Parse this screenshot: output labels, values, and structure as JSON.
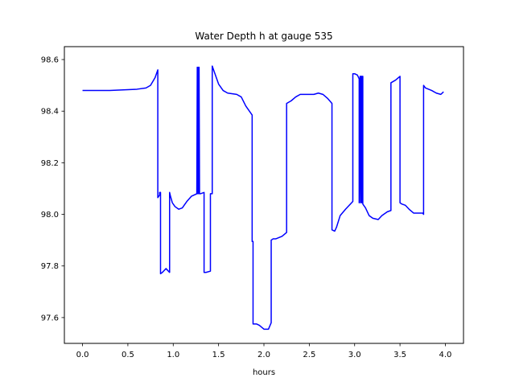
{
  "chart_data": {
    "type": "line",
    "title": "Water Depth h at gauge 535",
    "xlabel": "hours",
    "ylabel": "",
    "xlim": [
      -0.2,
      4.2
    ],
    "ylim": [
      97.5,
      98.65
    ],
    "xticks": [
      0.0,
      0.5,
      1.0,
      1.5,
      2.0,
      2.5,
      3.0,
      3.5,
      4.0
    ],
    "xtick_labels": [
      "0.0",
      "0.5",
      "1.0",
      "1.5",
      "2.0",
      "2.5",
      "3.0",
      "3.5",
      "4.0"
    ],
    "yticks": [
      97.6,
      97.8,
      98.0,
      98.2,
      98.4,
      98.6
    ],
    "ytick_labels": [
      "97.6",
      "97.8",
      "98.0",
      "98.2",
      "98.4",
      "98.6"
    ],
    "grid": false,
    "series": [
      {
        "color": "#0000ff",
        "x": [
          0.0,
          0.3,
          0.6,
          0.7,
          0.75,
          0.8,
          0.83,
          0.83,
          0.85,
          0.85,
          0.86,
          0.86,
          0.88,
          0.92,
          0.96,
          0.96,
          0.97,
          0.99,
          1.02,
          1.06,
          1.1,
          1.15,
          1.2,
          1.26,
          1.265,
          1.27,
          1.275,
          1.28,
          1.285,
          1.29,
          1.3,
          1.34,
          1.34,
          1.36,
          1.41,
          1.41,
          1.43,
          1.43,
          1.46,
          1.5,
          1.55,
          1.6,
          1.7,
          1.75,
          1.8,
          1.87,
          1.87,
          1.88,
          1.88,
          1.92,
          1.95,
          2.0,
          2.05,
          2.08,
          2.08,
          2.1,
          2.13,
          2.2,
          2.25,
          2.25,
          2.3,
          2.35,
          2.4,
          2.45,
          2.55,
          2.6,
          2.65,
          2.7,
          2.75,
          2.75,
          2.78,
          2.8,
          2.84,
          2.9,
          2.98,
          2.98,
          3.0,
          3.03,
          3.05,
          3.05,
          3.06,
          3.065,
          3.07,
          3.075,
          3.08,
          3.085,
          3.09,
          3.09,
          3.12,
          3.16,
          3.2,
          3.26,
          3.3,
          3.36,
          3.4,
          3.4,
          3.45,
          3.5,
          3.5,
          3.52,
          3.56,
          3.6,
          3.65,
          3.7,
          3.75,
          3.76,
          3.76,
          3.78,
          3.85,
          3.9,
          3.95,
          3.98
        ],
        "y": [
          98.48,
          98.48,
          98.485,
          98.49,
          98.5,
          98.53,
          98.56,
          98.065,
          98.075,
          98.085,
          98.085,
          97.77,
          97.775,
          97.79,
          97.775,
          98.085,
          98.07,
          98.045,
          98.03,
          98.02,
          98.025,
          98.05,
          98.07,
          98.08,
          98.57,
          98.08,
          98.57,
          98.08,
          98.57,
          98.08,
          98.08,
          98.085,
          97.775,
          97.775,
          97.78,
          98.08,
          98.08,
          98.575,
          98.545,
          98.505,
          98.48,
          98.47,
          98.465,
          98.455,
          98.42,
          98.385,
          97.895,
          97.895,
          97.575,
          97.575,
          97.57,
          97.555,
          97.555,
          97.58,
          97.9,
          97.905,
          97.905,
          97.915,
          97.93,
          98.43,
          98.44,
          98.455,
          98.465,
          98.465,
          98.465,
          98.47,
          98.465,
          98.45,
          98.43,
          97.94,
          97.935,
          97.95,
          97.995,
          98.02,
          98.05,
          98.545,
          98.545,
          98.54,
          98.525,
          98.045,
          98.535,
          98.045,
          98.535,
          98.045,
          98.535,
          98.045,
          98.535,
          98.04,
          98.025,
          97.995,
          97.985,
          97.98,
          97.995,
          98.01,
          98.015,
          98.51,
          98.52,
          98.535,
          98.045,
          98.04,
          98.035,
          98.02,
          98.005,
          98.005,
          98.005,
          98.0,
          98.5,
          98.49,
          98.48,
          98.47,
          98.465,
          98.475
        ]
      }
    ]
  }
}
